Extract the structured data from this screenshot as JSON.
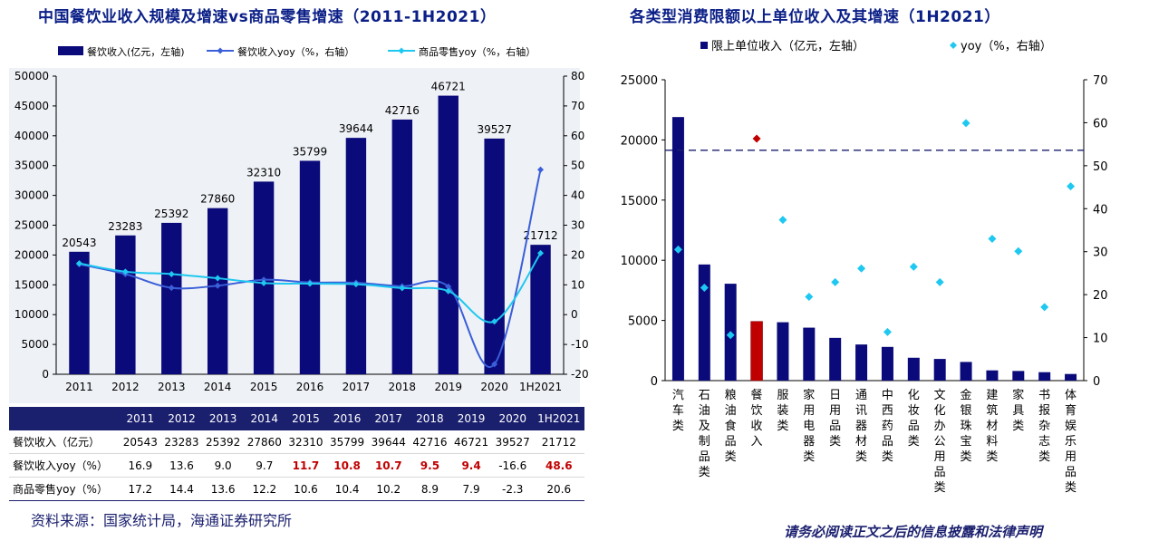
{
  "left_title": "中国餐饮业收入规模及增速vs商品零售增速（2011-1H2021）",
  "right_title": "各类型消费限额以上单位收入及其增速（1H2021）",
  "source": "资料来源：国家统计局，海通证券研究所",
  "footer_text": "请务必阅读正文之后的信息披露和法律声明",
  "colors": {
    "navy": "#0a0a7a",
    "blue": "#3a5fd8",
    "cyan": "#1ec8f0",
    "red": "#c00000",
    "header_bg": "#1a1f6e"
  },
  "chart_data": [
    {
      "type": "bar",
      "categories": [
        "2011",
        "2012",
        "2013",
        "2014",
        "2015",
        "2016",
        "2017",
        "2018",
        "2019",
        "2020",
        "1H2021"
      ],
      "series": [
        {
          "name": "餐饮收入(亿元，左轴)",
          "type": "bar",
          "axis": "left",
          "values": [
            20543,
            23283,
            25392,
            27860,
            32310,
            35799,
            39644,
            42716,
            46721,
            39527,
            21712
          ]
        },
        {
          "name": "餐饮收入yoy（%，右轴）",
          "type": "line",
          "axis": "right",
          "values": [
            16.9,
            13.6,
            9.0,
            9.7,
            11.7,
            10.8,
            10.7,
            9.5,
            9.4,
            -16.6,
            48.6
          ]
        },
        {
          "name": "商品零售yoy（%，右轴）",
          "type": "line",
          "axis": "right",
          "values": [
            17.2,
            14.4,
            13.6,
            12.2,
            10.6,
            10.4,
            10.2,
            8.9,
            7.9,
            -2.3,
            20.6
          ]
        }
      ],
      "ylim_left": [
        0,
        50000
      ],
      "yticks_left": [
        "0",
        "5000",
        "10000",
        "15000",
        "20000",
        "25000",
        "30000",
        "35000",
        "40000",
        "45000",
        "50000"
      ],
      "ylim_right": [
        -20,
        80
      ],
      "yticks_right": [
        "-20",
        "-10",
        "0",
        "10",
        "20",
        "30",
        "40",
        "50",
        "60",
        "70",
        "80"
      ],
      "legend": "top",
      "grid": false
    },
    {
      "type": "bar",
      "categories": [
        "汽车类",
        "石油及制品类",
        "粮油食品类",
        "餐饮收入",
        "服装类",
        "家用电器类",
        "日用品类",
        "通讯器材类",
        "中西药品类",
        "化妆品类",
        "文化办公用品类",
        "金银珠宝类",
        "建筑材料类",
        "家具类",
        "书报杂志类",
        "体育娱乐用品类"
      ],
      "series": [
        {
          "name": "限上单位收入（亿元，左轴）",
          "type": "bar",
          "axis": "left",
          "values": [
            21900,
            9650,
            8050,
            4920,
            4850,
            4400,
            3550,
            3000,
            2800,
            1900,
            1800,
            1550,
            850,
            800,
            700,
            550
          ]
        },
        {
          "name": "yoy（%，右轴）",
          "type": "scatter",
          "axis": "right",
          "values": [
            30.5,
            21.6,
            10.6,
            56.3,
            37.4,
            19.5,
            22.9,
            26.1,
            11.3,
            26.5,
            22.9,
            59.9,
            33.0,
            30.1,
            17.1,
            45.2
          ]
        }
      ],
      "highlight_category": "餐饮收入",
      "reference_line_right": 53.6,
      "ylim_left": [
        0,
        25000
      ],
      "yticks_left": [
        "0",
        "5000",
        "10000",
        "15000",
        "20000",
        "25000"
      ],
      "ylim_right": [
        0,
        70
      ],
      "yticks_right": [
        "0",
        "10",
        "20",
        "30",
        "40",
        "50",
        "60",
        "70"
      ],
      "legend": "top",
      "grid": false
    }
  ],
  "table": {
    "years": [
      "2011",
      "2012",
      "2013",
      "2014",
      "2015",
      "2016",
      "2017",
      "2018",
      "2019",
      "2020",
      "1H2021"
    ],
    "rows": [
      {
        "label": "餐饮收入（亿元）",
        "values": [
          "20543",
          "23283",
          "25392",
          "27860",
          "32310",
          "35799",
          "39644",
          "42716",
          "46721",
          "39527",
          "21712"
        ],
        "highlight": [
          false,
          false,
          false,
          false,
          false,
          false,
          false,
          false,
          false,
          false,
          false
        ]
      },
      {
        "label": "餐饮收入yoy（%）",
        "values": [
          "16.9",
          "13.6",
          "9.0",
          "9.7",
          "11.7",
          "10.8",
          "10.7",
          "9.5",
          "9.4",
          "-16.6",
          "48.6"
        ],
        "highlight": [
          false,
          false,
          false,
          false,
          true,
          true,
          true,
          true,
          true,
          false,
          true
        ]
      },
      {
        "label": "商品零售yoy（%）",
        "values": [
          "17.2",
          "14.4",
          "13.6",
          "12.2",
          "10.6",
          "10.4",
          "10.2",
          "8.9",
          "7.9",
          "-2.3",
          "20.6"
        ],
        "highlight": [
          false,
          false,
          false,
          false,
          false,
          false,
          false,
          false,
          false,
          false,
          false
        ]
      }
    ]
  }
}
